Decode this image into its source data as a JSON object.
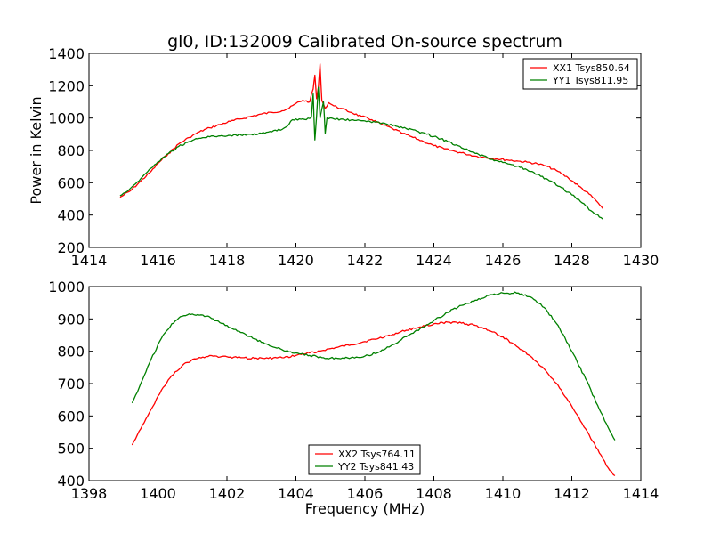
{
  "title": "gl0, ID:132009 Calibrated On-source spectrum",
  "chart_data": [
    {
      "type": "line",
      "title": "gl0, ID:132009 Calibrated On-source spectrum",
      "xlabel": "",
      "ylabel": "Power in Kelvin",
      "xlim": [
        1414,
        1430
      ],
      "ylim": [
        200,
        1400
      ],
      "xticks": [
        "1414",
        "1416",
        "1418",
        "1420",
        "1422",
        "1424",
        "1426",
        "1428",
        "1430"
      ],
      "yticks": [
        "200",
        "400",
        "600",
        "800",
        "1000",
        "1200",
        "1400"
      ],
      "legend_position": "top-right",
      "series": [
        {
          "name": "XX1 Tsys850.64",
          "color": "#ff0000",
          "points": [
            [
              1414.9,
              510
            ],
            [
              1415.2,
              550
            ],
            [
              1415.5,
              610
            ],
            [
              1415.8,
              670
            ],
            [
              1416.0,
              720
            ],
            [
              1416.3,
              780
            ],
            [
              1416.6,
              840
            ],
            [
              1416.9,
              880
            ],
            [
              1417.2,
              915
            ],
            [
              1417.5,
              940
            ],
            [
              1417.8,
              960
            ],
            [
              1418.1,
              980
            ],
            [
              1418.4,
              995
            ],
            [
              1418.7,
              1010
            ],
            [
              1419.0,
              1025
            ],
            [
              1419.3,
              1035
            ],
            [
              1419.6,
              1045
            ],
            [
              1419.8,
              1060
            ],
            [
              1420.0,
              1090
            ],
            [
              1420.2,
              1110
            ],
            [
              1420.4,
              1100
            ],
            [
              1420.5,
              1180
            ],
            [
              1420.55,
              1265
            ],
            [
              1420.6,
              1120
            ],
            [
              1420.65,
              1190
            ],
            [
              1420.7,
              1335
            ],
            [
              1420.75,
              1110
            ],
            [
              1420.85,
              1060
            ],
            [
              1420.95,
              1095
            ],
            [
              1421.1,
              1075
            ],
            [
              1421.3,
              1060
            ],
            [
              1421.6,
              1035
            ],
            [
              1421.9,
              1010
            ],
            [
              1422.2,
              990
            ],
            [
              1422.5,
              960
            ],
            [
              1422.8,
              935
            ],
            [
              1423.1,
              905
            ],
            [
              1423.4,
              880
            ],
            [
              1423.7,
              855
            ],
            [
              1424.0,
              830
            ],
            [
              1424.3,
              810
            ],
            [
              1424.6,
              795
            ],
            [
              1424.9,
              780
            ],
            [
              1425.2,
              765
            ],
            [
              1425.5,
              755
            ],
            [
              1425.8,
              748
            ],
            [
              1426.1,
              742
            ],
            [
              1426.4,
              735
            ],
            [
              1426.7,
              728
            ],
            [
              1427.0,
              718
            ],
            [
              1427.3,
              700
            ],
            [
              1427.6,
              670
            ],
            [
              1427.9,
              630
            ],
            [
              1428.2,
              580
            ],
            [
              1428.5,
              530
            ],
            [
              1428.7,
              490
            ],
            [
              1428.9,
              440
            ]
          ]
        },
        {
          "name": "YY1 Tsys811.95",
          "color": "#008000",
          "points": [
            [
              1414.9,
              520
            ],
            [
              1415.2,
              565
            ],
            [
              1415.5,
              625
            ],
            [
              1415.8,
              690
            ],
            [
              1416.0,
              730
            ],
            [
              1416.3,
              780
            ],
            [
              1416.6,
              825
            ],
            [
              1416.9,
              855
            ],
            [
              1417.2,
              875
            ],
            [
              1417.5,
              885
            ],
            [
              1417.8,
              890
            ],
            [
              1418.1,
              893
            ],
            [
              1418.4,
              896
            ],
            [
              1418.7,
              900
            ],
            [
              1419.0,
              905
            ],
            [
              1419.3,
              915
            ],
            [
              1419.6,
              930
            ],
            [
              1419.75,
              950
            ],
            [
              1419.9,
              990
            ],
            [
              1420.1,
              995
            ],
            [
              1420.3,
              990
            ],
            [
              1420.45,
              1005
            ],
            [
              1420.5,
              1150
            ],
            [
              1420.55,
              865
            ],
            [
              1420.6,
              1010
            ],
            [
              1420.65,
              1190
            ],
            [
              1420.7,
              1000
            ],
            [
              1420.8,
              1100
            ],
            [
              1420.85,
              905
            ],
            [
              1420.9,
              1000
            ],
            [
              1421.1,
              995
            ],
            [
              1421.4,
              990
            ],
            [
              1421.7,
              985
            ],
            [
              1422.0,
              982
            ],
            [
              1422.3,
              975
            ],
            [
              1422.6,
              965
            ],
            [
              1422.9,
              950
            ],
            [
              1423.2,
              935
            ],
            [
              1423.5,
              920
            ],
            [
              1423.8,
              900
            ],
            [
              1424.1,
              880
            ],
            [
              1424.4,
              855
            ],
            [
              1424.7,
              830
            ],
            [
              1425.0,
              800
            ],
            [
              1425.3,
              775
            ],
            [
              1425.6,
              750
            ],
            [
              1425.9,
              730
            ],
            [
              1426.2,
              715
            ],
            [
              1426.5,
              695
            ],
            [
              1426.8,
              670
            ],
            [
              1427.1,
              640
            ],
            [
              1427.4,
              610
            ],
            [
              1427.7,
              570
            ],
            [
              1428.0,
              525
            ],
            [
              1428.3,
              475
            ],
            [
              1428.6,
              420
            ],
            [
              1428.9,
              375
            ]
          ]
        }
      ]
    },
    {
      "type": "line",
      "title": "",
      "xlabel": "Frequency (MHz)",
      "ylabel": "",
      "xlim": [
        1398,
        1414
      ],
      "ylim": [
        400,
        1000
      ],
      "xticks": [
        "1398",
        "1400",
        "1402",
        "1404",
        "1406",
        "1408",
        "1410",
        "1412",
        "1414"
      ],
      "yticks": [
        "400",
        "500",
        "600",
        "700",
        "800",
        "900",
        "1000"
      ],
      "legend_position": "bottom-center",
      "series": [
        {
          "name": "XX2 Tsys764.11",
          "color": "#ff0000",
          "points": [
            [
              1399.25,
              510
            ],
            [
              1399.5,
              560
            ],
            [
              1399.8,
              620
            ],
            [
              1400.1,
              680
            ],
            [
              1400.4,
              725
            ],
            [
              1400.7,
              755
            ],
            [
              1401.0,
              775
            ],
            [
              1401.3,
              782
            ],
            [
              1401.6,
              785
            ],
            [
              1402.0,
              783
            ],
            [
              1402.4,
              780
            ],
            [
              1402.8,
              778
            ],
            [
              1403.2,
              778
            ],
            [
              1403.6,
              780
            ],
            [
              1404.0,
              787
            ],
            [
              1404.4,
              795
            ],
            [
              1404.8,
              803
            ],
            [
              1405.2,
              812
            ],
            [
              1405.6,
              820
            ],
            [
              1406.0,
              830
            ],
            [
              1406.4,
              840
            ],
            [
              1406.8,
              852
            ],
            [
              1407.2,
              865
            ],
            [
              1407.6,
              875
            ],
            [
              1408.0,
              885
            ],
            [
              1408.4,
              890
            ],
            [
              1408.8,
              887
            ],
            [
              1409.2,
              880
            ],
            [
              1409.6,
              865
            ],
            [
              1410.0,
              845
            ],
            [
              1410.4,
              815
            ],
            [
              1410.8,
              785
            ],
            [
              1411.2,
              745
            ],
            [
              1411.6,
              695
            ],
            [
              1412.0,
              630
            ],
            [
              1412.4,
              560
            ],
            [
              1412.8,
              485
            ],
            [
              1413.05,
              440
            ],
            [
              1413.25,
              415
            ]
          ]
        },
        {
          "name": "YY2 Tsys841.43",
          "color": "#008000",
          "points": [
            [
              1399.25,
              640
            ],
            [
              1399.5,
              700
            ],
            [
              1399.8,
              775
            ],
            [
              1400.1,
              840
            ],
            [
              1400.4,
              885
            ],
            [
              1400.7,
              908
            ],
            [
              1401.0,
              915
            ],
            [
              1401.3,
              912
            ],
            [
              1401.6,
              900
            ],
            [
              1402.0,
              880
            ],
            [
              1402.4,
              858
            ],
            [
              1402.8,
              838
            ],
            [
              1403.2,
              820
            ],
            [
              1403.6,
              805
            ],
            [
              1404.0,
              795
            ],
            [
              1404.4,
              787
            ],
            [
              1404.8,
              780
            ],
            [
              1405.2,
              778
            ],
            [
              1405.6,
              780
            ],
            [
              1406.0,
              785
            ],
            [
              1406.4,
              797
            ],
            [
              1406.8,
              820
            ],
            [
              1407.2,
              845
            ],
            [
              1407.6,
              870
            ],
            [
              1408.0,
              895
            ],
            [
              1408.4,
              920
            ],
            [
              1408.8,
              942
            ],
            [
              1409.2,
              958
            ],
            [
              1409.6,
              972
            ],
            [
              1410.0,
              980
            ],
            [
              1410.4,
              980
            ],
            [
              1410.8,
              968
            ],
            [
              1411.2,
              935
            ],
            [
              1411.6,
              880
            ],
            [
              1412.0,
              800
            ],
            [
              1412.4,
              715
            ],
            [
              1412.8,
              620
            ],
            [
              1413.05,
              565
            ],
            [
              1413.25,
              525
            ]
          ]
        }
      ]
    }
  ]
}
